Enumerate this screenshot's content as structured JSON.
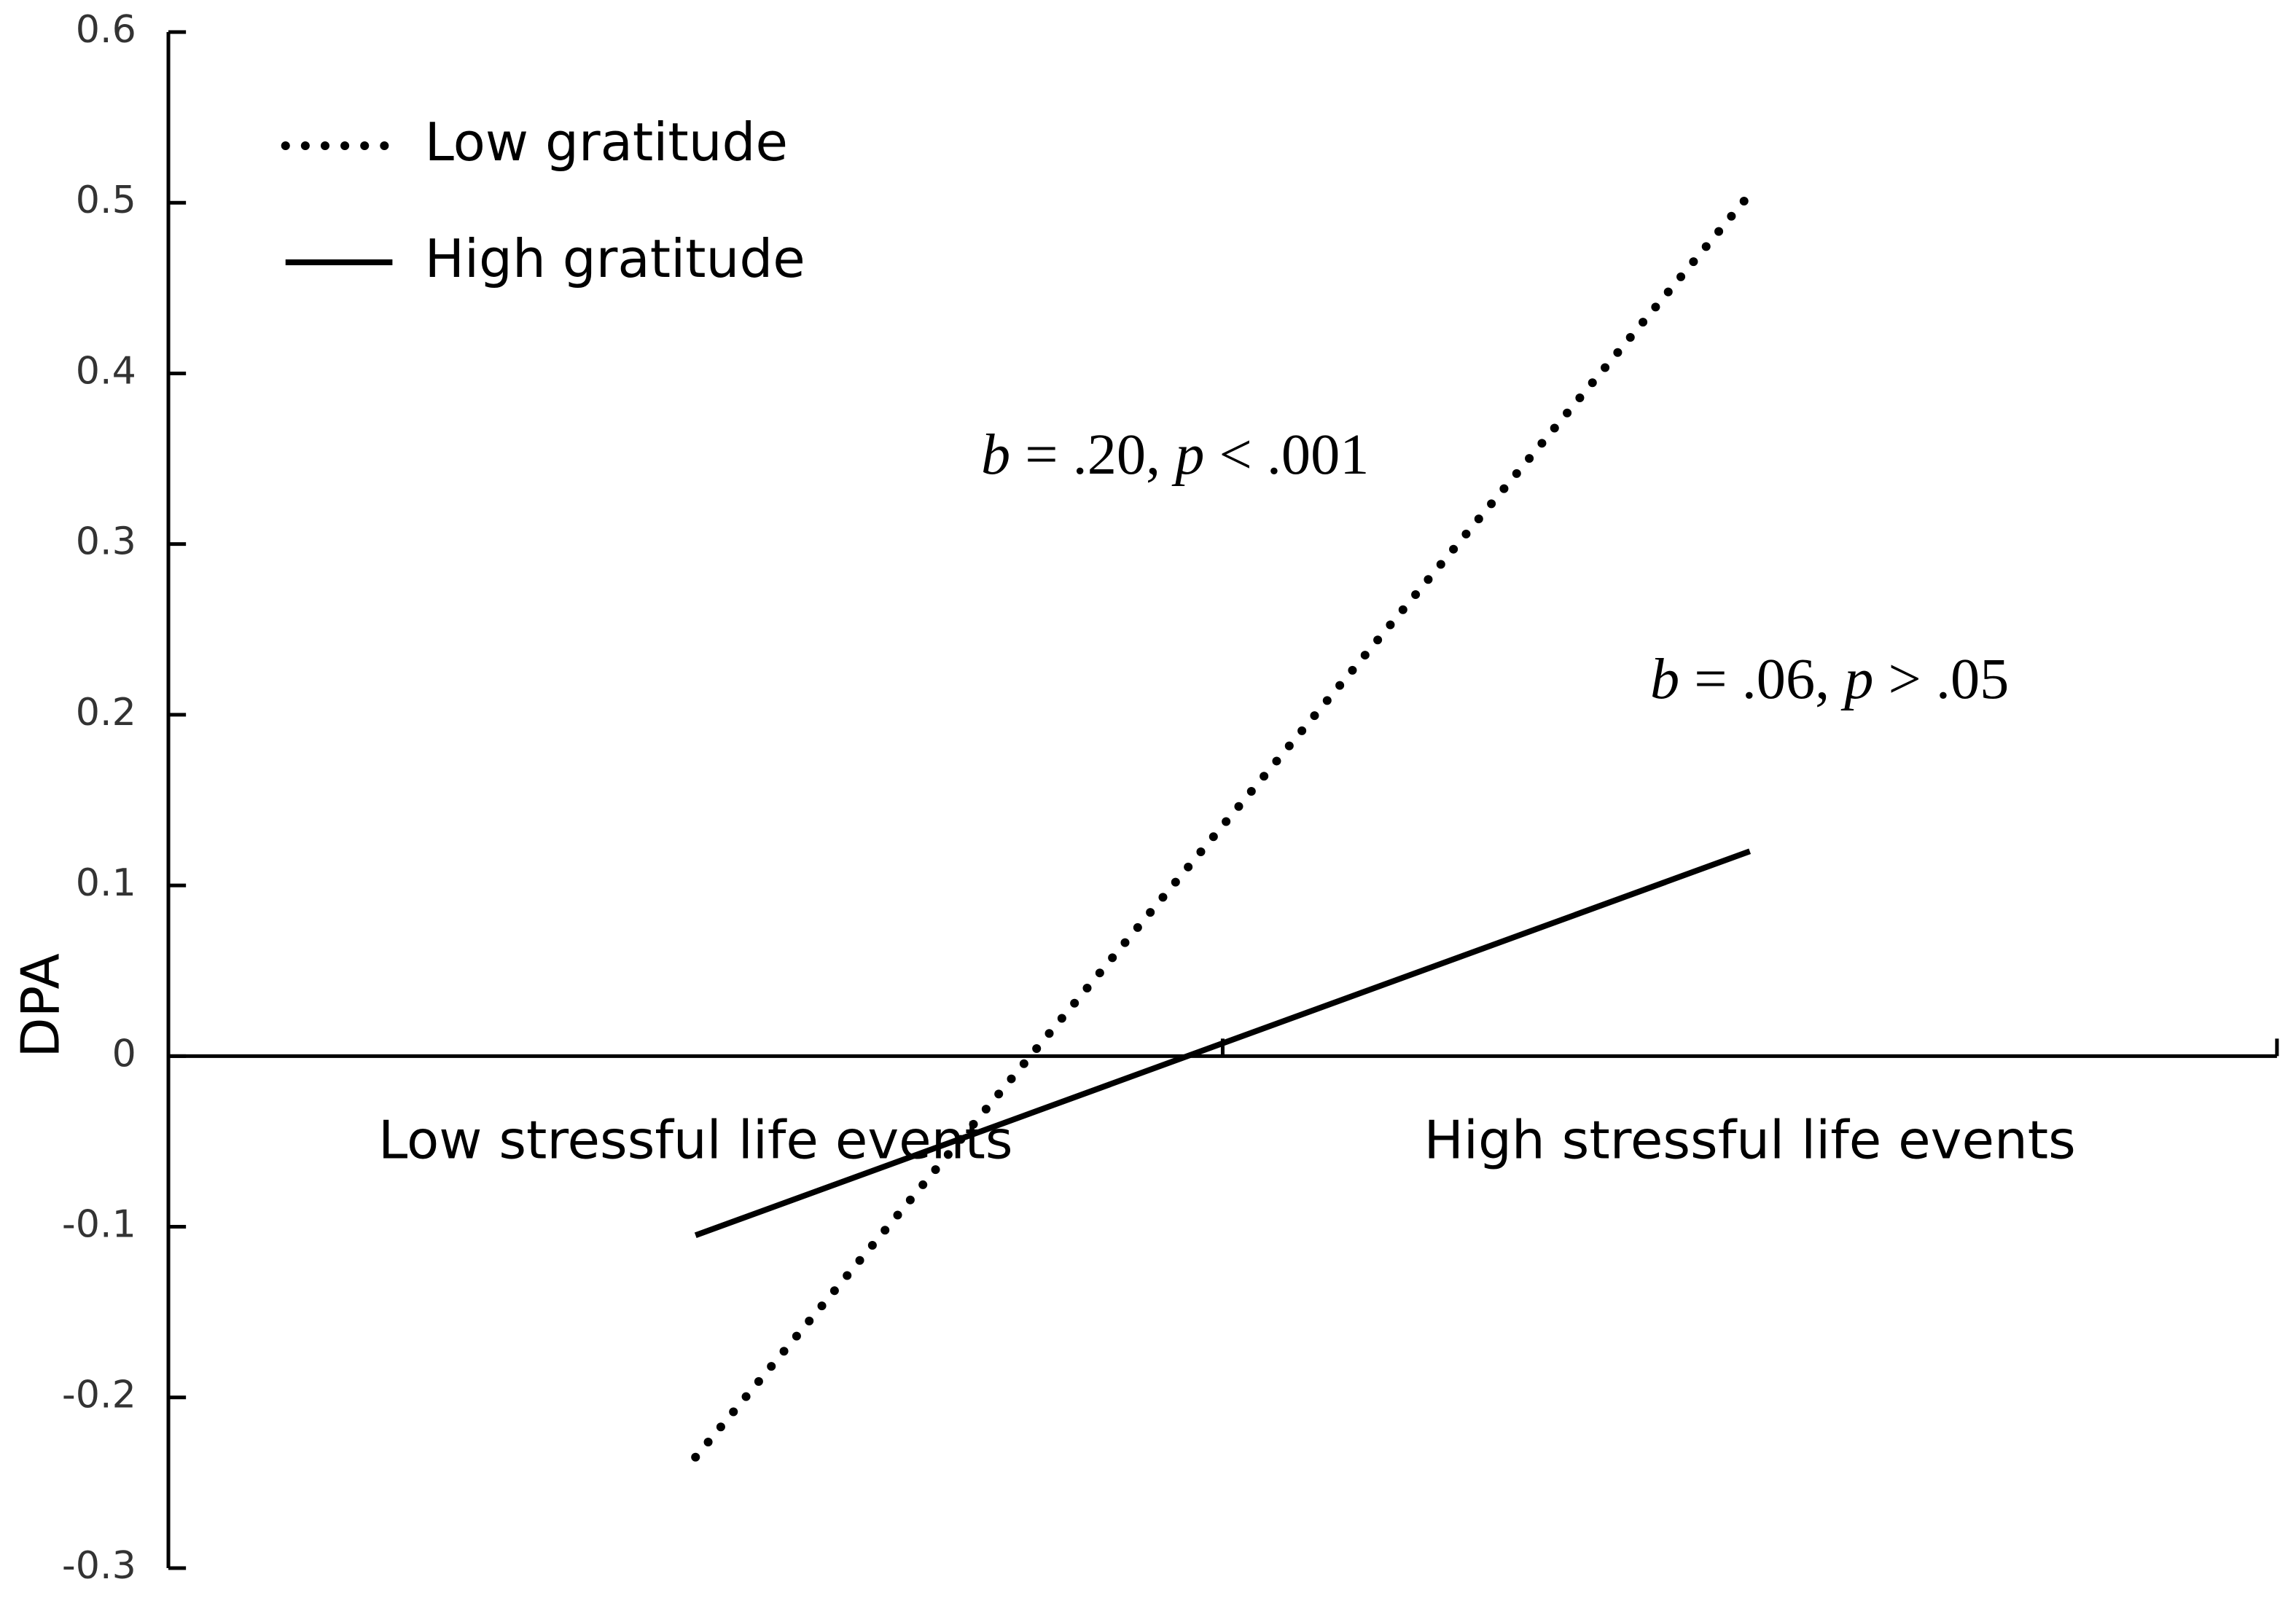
{
  "chart_data": {
    "type": "line",
    "y_label": "DPA",
    "categories": [
      "Low stressful life events",
      "High stressful life events"
    ],
    "series": [
      {
        "name": "Low gratitude",
        "color": "#000000",
        "style": "dotted",
        "values": [
          -0.235,
          0.505
        ]
      },
      {
        "name": "High gratitude",
        "color": "#000000",
        "style": "solid",
        "values": [
          -0.105,
          0.12
        ]
      }
    ],
    "ylim": [
      -0.3,
      0.6
    ],
    "yticks": [
      -0.3,
      -0.2,
      -0.1,
      0,
      0.1,
      0.2,
      0.3,
      0.4,
      0.5,
      0.6
    ],
    "grid": false,
    "legend": "upper-left",
    "annotations": [
      [
        "b",
        " = .20, ",
        "p",
        " < .001"
      ],
      [
        "b",
        " = .06, ",
        "p",
        " > .05"
      ]
    ]
  }
}
